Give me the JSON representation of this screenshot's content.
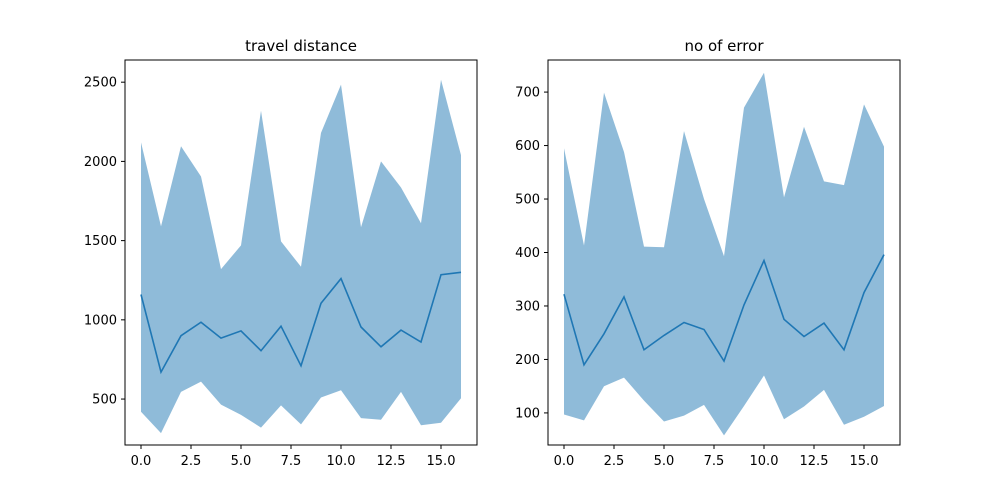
{
  "chart_data": [
    {
      "type": "area",
      "title": "travel distance",
      "xlabel": "",
      "ylabel": "",
      "xlim": [
        -0.8,
        16.8
      ],
      "ylim": [
        210,
        2640
      ],
      "xticks": [
        0,
        2.5,
        5,
        7.5,
        10,
        12.5,
        15
      ],
      "xtick_labels": [
        "0.0",
        "2.5",
        "5.0",
        "7.5",
        "10.0",
        "12.5",
        "15.0"
      ],
      "yticks": [
        500,
        1000,
        1500,
        2000,
        2500
      ],
      "ytick_labels": [
        "500",
        "1000",
        "1500",
        "2000",
        "2500"
      ],
      "grid": false,
      "colors": {
        "line": "#1f77b4",
        "band": "#1f77b4"
      },
      "x": [
        0,
        1,
        2,
        3,
        4,
        5,
        6,
        7,
        8,
        9,
        10,
        11,
        12,
        13,
        14,
        15,
        16
      ],
      "series": [
        {
          "values": [
            1160,
            670,
            900,
            985,
            885,
            930,
            805,
            960,
            710,
            1105,
            1260,
            955,
            830,
            935,
            860,
            1285,
            1300
          ],
          "lower": [
            420,
            285,
            545,
            610,
            465,
            400,
            320,
            460,
            340,
            510,
            555,
            380,
            370,
            545,
            335,
            350,
            505
          ],
          "upper": [
            2120,
            1590,
            2095,
            1905,
            1320,
            1470,
            2320,
            1495,
            1335,
            2180,
            2485,
            1585,
            2000,
            1835,
            1610,
            2515,
            2040
          ]
        }
      ]
    },
    {
      "type": "area",
      "title": "no of error",
      "xlabel": "",
      "ylabel": "",
      "xlim": [
        -0.8,
        16.8
      ],
      "ylim": [
        40,
        760
      ],
      "xticks": [
        0,
        2.5,
        5,
        7.5,
        10,
        12.5,
        15
      ],
      "xtick_labels": [
        "0.0",
        "2.5",
        "5.0",
        "7.5",
        "10.0",
        "12.5",
        "15.0"
      ],
      "yticks": [
        100,
        200,
        300,
        400,
        500,
        600,
        700
      ],
      "ytick_labels": [
        "100",
        "200",
        "300",
        "400",
        "500",
        "600",
        "700"
      ],
      "grid": false,
      "colors": {
        "line": "#1f77b4",
        "band": "#1f77b4"
      },
      "x": [
        0,
        1,
        2,
        3,
        4,
        5,
        6,
        7,
        8,
        9,
        10,
        11,
        12,
        13,
        14,
        15,
        16
      ],
      "series": [
        {
          "values": [
            322,
            190,
            248,
            317,
            218,
            245,
            269,
            256,
            197,
            302,
            385,
            275,
            243,
            268,
            218,
            325,
            396
          ],
          "lower": [
            97,
            86,
            150,
            166,
            123,
            84,
            95,
            115,
            58,
            113,
            170,
            88,
            112,
            143,
            78,
            93,
            113
          ],
          "upper": [
            595,
            413,
            699,
            588,
            411,
            410,
            627,
            500,
            393,
            671,
            736,
            503,
            635,
            533,
            526,
            677,
            598
          ]
        }
      ]
    }
  ]
}
